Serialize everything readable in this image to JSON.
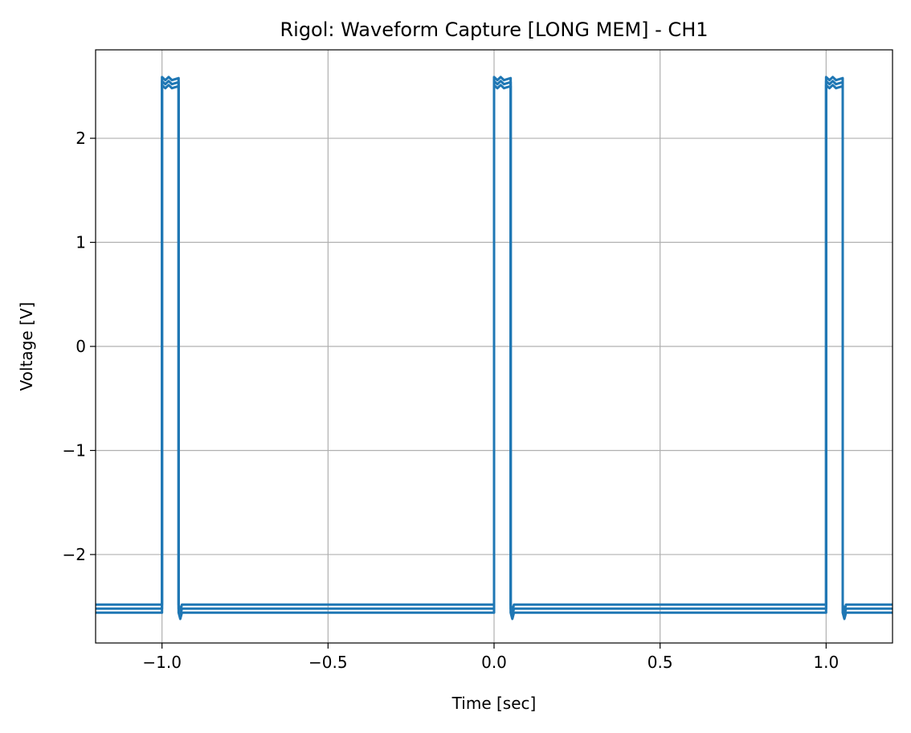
{
  "chart_data": {
    "type": "line",
    "title": "Rigol: Waveform Capture [LONG MEM] - CH1",
    "xlabel": "Time [sec]",
    "ylabel": "Voltage [V]",
    "xlim": [
      -1.2,
      1.2
    ],
    "ylim": [
      -2.85,
      2.85
    ],
    "x_ticks": [
      -1.0,
      -0.5,
      0.0,
      0.5,
      1.0
    ],
    "x_tick_labels": [
      "−1.0",
      "−0.5",
      "0.0",
      "0.5",
      "1.0"
    ],
    "y_ticks": [
      -2,
      -1,
      0,
      1,
      2
    ],
    "y_tick_labels": [
      "−2",
      "−1",
      "0",
      "1",
      "2"
    ],
    "grid": true,
    "line_color": "#1f77b4",
    "series": [
      {
        "x": [
          -1.2,
          -1.0,
          -1.0,
          -0.99,
          -0.98,
          -0.97,
          -0.95,
          -0.95,
          -0.945,
          -0.94,
          0.0,
          0.0,
          0.01,
          0.02,
          0.03,
          0.05,
          0.05,
          0.055,
          0.06,
          1.0,
          1.0,
          1.01,
          1.02,
          1.03,
          1.05,
          1.05,
          1.055,
          1.06,
          1.2
        ],
        "y": [
          -2.52,
          -2.52,
          2.55,
          2.52,
          2.55,
          2.52,
          2.54,
          -2.52,
          -2.58,
          -2.52,
          -2.52,
          2.55,
          2.52,
          2.55,
          2.52,
          2.54,
          -2.52,
          -2.58,
          -2.52,
          -2.52,
          2.55,
          2.52,
          2.55,
          2.52,
          2.54,
          -2.52,
          -2.58,
          -2.52,
          -2.52
        ]
      }
    ]
  }
}
